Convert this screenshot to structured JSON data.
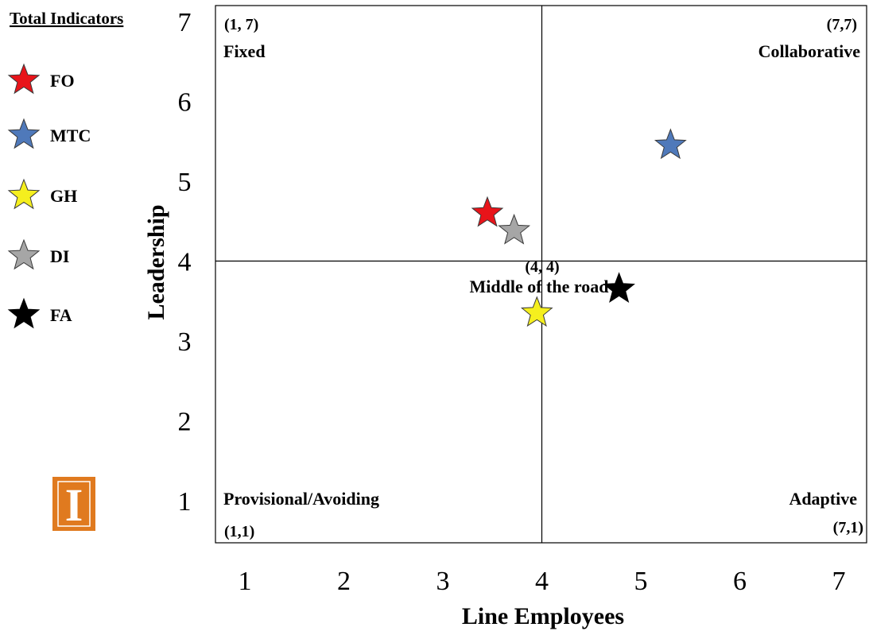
{
  "legend": {
    "title": "Total Indicators",
    "items": [
      {
        "label": "FO",
        "color": "#e8141a"
      },
      {
        "label": "MTC",
        "color": "#4f79ba"
      },
      {
        "label": "GH",
        "color": "#f5ef1e"
      },
      {
        "label": "DI",
        "color": "#a6a6a6"
      },
      {
        "label": "FA",
        "color": "#000000"
      }
    ]
  },
  "logo": {
    "color": "#e07a1f",
    "letter": "I"
  },
  "chart_data": {
    "type": "scatter",
    "xlabel": "Line Employees",
    "ylabel": "Leadership",
    "xlim": [
      1,
      7
    ],
    "ylim": [
      1,
      7
    ],
    "xticks": [
      "1",
      "2",
      "3",
      "4",
      "5",
      "6",
      "7"
    ],
    "yticks": [
      "1",
      "2",
      "3",
      "4",
      "5",
      "6",
      "7"
    ],
    "grid": false,
    "legend_position": "left",
    "divider_x": 4,
    "divider_y": 4,
    "series": [
      {
        "name": "FO",
        "color": "#e8141a",
        "x": 3.45,
        "y": 4.6
      },
      {
        "name": "MTC",
        "color": "#4f79ba",
        "x": 5.3,
        "y": 5.45
      },
      {
        "name": "GH",
        "color": "#f5ef1e",
        "x": 3.95,
        "y": 3.35
      },
      {
        "name": "DI",
        "color": "#a6a6a6",
        "x": 3.72,
        "y": 4.38
      },
      {
        "name": "FA",
        "color": "#000000",
        "x": 4.78,
        "y": 3.65
      }
    ],
    "annotations": [
      {
        "coord": "(1, 7)",
        "label": "Fixed"
      },
      {
        "coord": "(7,7)",
        "label": "Collaborative"
      },
      {
        "coord": "(4, 4)",
        "label": "Middle of the road"
      },
      {
        "coord": "(1,1)",
        "label": "Provisional/Avoiding"
      },
      {
        "coord": "(7,1)",
        "label": "Adaptive"
      }
    ]
  }
}
